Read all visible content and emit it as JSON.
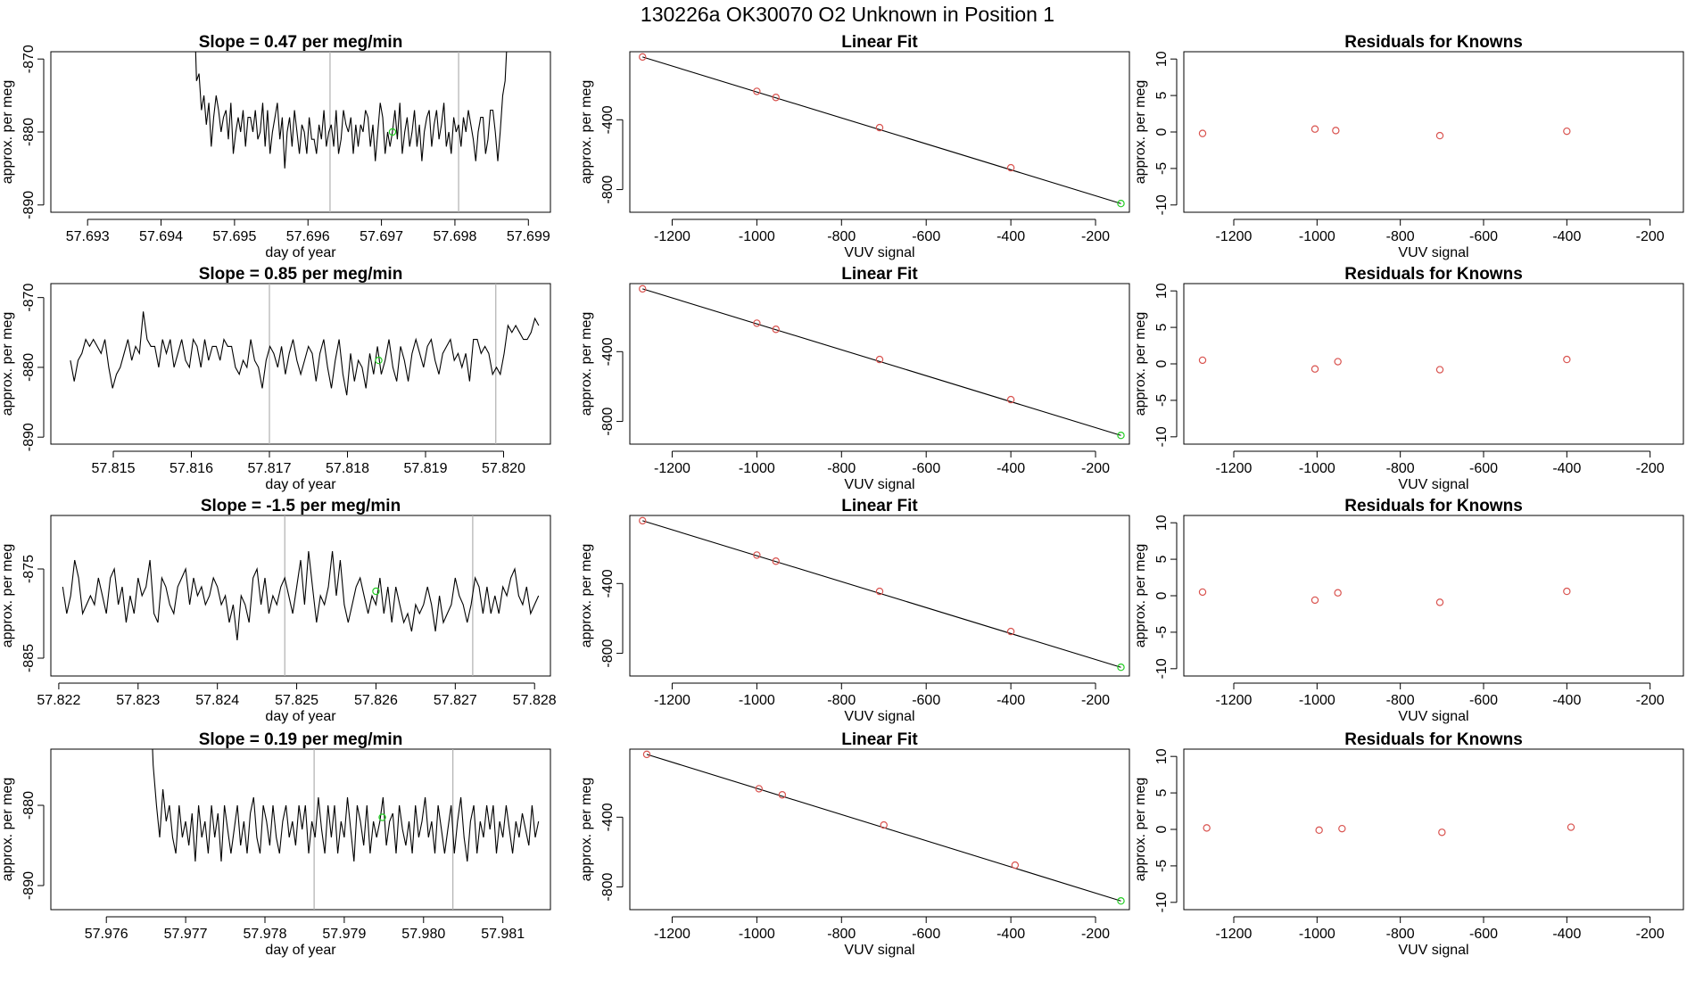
{
  "figure": {
    "title": "130226a      OK30070    O2 Unknown in Position  1"
  },
  "chart_data": [
    {
      "type": "line",
      "title": "Slope =  0.47  per meg/min",
      "xlabel": "day of year",
      "ylabel": "approx. per meg",
      "xlim": [
        57.6925,
        57.6993
      ],
      "ylim": [
        -891,
        -869
      ],
      "xticks": [
        57.693,
        57.694,
        57.695,
        57.696,
        57.697,
        57.698,
        57.699
      ],
      "xtick_labels": [
        "57.693",
        "57.694",
        "57.695",
        "57.696",
        "57.697",
        "57.698",
        "57.699"
      ],
      "yticks": [
        -870,
        -880,
        -890
      ],
      "ytick_labels": [
        "-870",
        "-880",
        "-890"
      ],
      "x_start": 57.69445,
      "x_end": 57.69875,
      "values": [
        -862,
        -873,
        -872,
        -877,
        -875,
        -879,
        -876,
        -882,
        -878,
        -875,
        -877,
        -880,
        -878,
        -877,
        -881,
        -876,
        -883,
        -880,
        -878,
        -880,
        -877,
        -882,
        -878,
        -878,
        -880,
        -877,
        -881,
        -880,
        -876,
        -882,
        -877,
        -883,
        -880,
        -878,
        -876,
        -881,
        -878,
        -885,
        -880,
        -878,
        -882,
        -877,
        -880,
        -883,
        -879,
        -880,
        -883,
        -878,
        -881,
        -881,
        -883,
        -879,
        -881,
        -877,
        -882,
        -880,
        -879,
        -882,
        -877,
        -883,
        -881,
        -877,
        -879,
        -880,
        -878,
        -883,
        -879,
        -882,
        -879,
        -880,
        -877,
        -878,
        -882,
        -879,
        -884,
        -880,
        -876,
        -878,
        -883,
        -880,
        -882,
        -880,
        -877,
        -881,
        -876,
        -883,
        -880,
        -878,
        -882,
        -880,
        -877,
        -882,
        -879,
        -884,
        -880,
        -878,
        -877,
        -882,
        -879,
        -877,
        -881,
        -879,
        -876,
        -882,
        -880,
        -883,
        -878,
        -880,
        -879,
        -882,
        -878,
        -880,
        -877,
        -879,
        -881,
        -884,
        -880,
        -878,
        -878,
        -883,
        -881,
        -877,
        -877,
        -880,
        -884,
        -880,
        -875,
        -873,
        -866,
        -858
      ],
      "vlines": [
        57.6963,
        57.69805
      ],
      "unknown_point": {
        "x": 57.69715,
        "y": -880
      }
    },
    {
      "type": "scatter",
      "title": "Linear Fit",
      "xlabel": "VUV signal",
      "ylabel": "approx. per meg",
      "xlim": [
        -1300,
        -120
      ],
      "ylim": [
        -930,
        -10
      ],
      "xticks": [
        -1200,
        -1000,
        -800,
        -600,
        -400,
        -200
      ],
      "xtick_labels": [
        "-1200",
        "-1000",
        "-800",
        "-600",
        "-400",
        "-200"
      ],
      "yticks": [
        -400,
        -800
      ],
      "ytick_labels": [
        "-400",
        "-800"
      ],
      "fit_line": [
        [
          -1270,
          -40
        ],
        [
          -140,
          -880
        ]
      ],
      "knowns": [
        [
          -1270,
          -40
        ],
        [
          -1000,
          -237
        ],
        [
          -955,
          -272
        ],
        [
          -710,
          -445
        ],
        [
          -400,
          -675
        ]
      ],
      "unknown": [
        -140,
        -880
      ]
    },
    {
      "type": "scatter",
      "title": "Residuals for Knowns",
      "xlabel": "VUV signal",
      "ylabel": "approx. per meg",
      "xlim": [
        -1320,
        -120
      ],
      "ylim": [
        -11,
        11
      ],
      "xticks": [
        -1200,
        -1000,
        -800,
        -600,
        -400,
        -200
      ],
      "xtick_labels": [
        "-1200",
        "-1000",
        "-800",
        "-600",
        "-400",
        "-200"
      ],
      "yticks": [
        10,
        5,
        0,
        -5,
        -10
      ],
      "ytick_labels": [
        "10",
        "5",
        "0",
        "-5",
        "-10"
      ],
      "residuals": [
        [
          -1275,
          -0.2
        ],
        [
          -1005,
          0.4
        ],
        [
          -955,
          0.2
        ],
        [
          -705,
          -0.5
        ],
        [
          -400,
          0.1
        ]
      ]
    },
    {
      "type": "line",
      "title": "Slope =  0.85  per meg/min",
      "xlabel": "day of year",
      "ylabel": "approx. per meg",
      "xlim": [
        57.8142,
        57.8206
      ],
      "ylim": [
        -891,
        -868
      ],
      "xticks": [
        57.815,
        57.816,
        57.817,
        57.818,
        57.819,
        57.82
      ],
      "xtick_labels": [
        "57.815",
        "57.816",
        "57.817",
        "57.818",
        "57.819",
        "57.820"
      ],
      "yticks": [
        -870,
        -880,
        -890
      ],
      "ytick_labels": [
        "-870",
        "-880",
        "-890"
      ],
      "x_start": 57.81445,
      "x_end": 57.82045,
      "values": [
        -879,
        -882,
        -879,
        -878,
        -876,
        -877,
        -876,
        -877,
        -878,
        -876,
        -880,
        -883,
        -881,
        -880,
        -878,
        -876,
        -879,
        -877,
        -878,
        -872,
        -876,
        -877,
        -877,
        -880,
        -876,
        -878,
        -876,
        -880,
        -878,
        -876,
        -879,
        -880,
        -876,
        -877,
        -880,
        -876,
        -879,
        -877,
        -877,
        -879,
        -876,
        -877,
        -877,
        -880,
        -881,
        -879,
        -880,
        -876,
        -879,
        -880,
        -883,
        -879,
        -877,
        -878,
        -880,
        -877,
        -881,
        -878,
        -876,
        -879,
        -881,
        -879,
        -877,
        -878,
        -882,
        -878,
        -876,
        -880,
        -883,
        -879,
        -876,
        -881,
        -884,
        -878,
        -882,
        -879,
        -880,
        -883,
        -878,
        -881,
        -877,
        -881,
        -879,
        -876,
        -880,
        -882,
        -877,
        -879,
        -882,
        -878,
        -876,
        -878,
        -880,
        -877,
        -876,
        -879,
        -881,
        -878,
        -877,
        -876,
        -879,
        -878,
        -880,
        -878,
        -882,
        -876,
        -876,
        -878,
        -877,
        -878,
        -881,
        -880,
        -881,
        -878,
        -874,
        -875,
        -874,
        -875,
        -876,
        -876,
        -875,
        -873,
        -874
      ],
      "vlines": [
        57.817,
        57.8199
      ],
      "unknown_point": {
        "x": 57.8184,
        "y": -879
      }
    },
    {
      "type": "scatter",
      "title": "Linear Fit",
      "xlabel": "VUV signal",
      "ylabel": "approx. per meg",
      "xlim": [
        -1300,
        -120
      ],
      "ylim": [
        -930,
        -10
      ],
      "xticks": [
        -1200,
        -1000,
        -800,
        -600,
        -400,
        -200
      ],
      "xtick_labels": [
        "-1200",
        "-1000",
        "-800",
        "-600",
        "-400",
        "-200"
      ],
      "yticks": [
        -400,
        -800
      ],
      "ytick_labels": [
        "-400",
        "-800"
      ],
      "fit_line": [
        [
          -1270,
          -40
        ],
        [
          -140,
          -880
        ]
      ],
      "knowns": [
        [
          -1270,
          -40
        ],
        [
          -1000,
          -237
        ],
        [
          -955,
          -272
        ],
        [
          -710,
          -445
        ],
        [
          -400,
          -675
        ]
      ],
      "unknown": [
        -140,
        -880
      ]
    },
    {
      "type": "scatter",
      "title": "Residuals for Knowns",
      "xlabel": "VUV signal",
      "ylabel": "approx. per meg",
      "xlim": [
        -1320,
        -120
      ],
      "ylim": [
        -11,
        11
      ],
      "xticks": [
        -1200,
        -1000,
        -800,
        -600,
        -400,
        -200
      ],
      "xtick_labels": [
        "-1200",
        "-1000",
        "-800",
        "-600",
        "-400",
        "-200"
      ],
      "yticks": [
        10,
        5,
        0,
        -5,
        -10
      ],
      "ytick_labels": [
        "10",
        "5",
        "0",
        "-5",
        "-10"
      ],
      "residuals": [
        [
          -1275,
          0.5
        ],
        [
          -1005,
          -0.7
        ],
        [
          -950,
          0.3
        ],
        [
          -705,
          -0.8
        ],
        [
          -400,
          0.6
        ]
      ]
    },
    {
      "type": "line",
      "title": "Slope =  -1.5  per meg/min",
      "xlabel": "day of year",
      "ylabel": "approx. per meg",
      "xlim": [
        57.8219,
        57.8282
      ],
      "ylim": [
        -887,
        -869
      ],
      "xticks": [
        57.822,
        57.823,
        57.824,
        57.825,
        57.826,
        57.827,
        57.828
      ],
      "xtick_labels": [
        "57.822",
        "57.823",
        "57.824",
        "57.825",
        "57.826",
        "57.827",
        "57.828"
      ],
      "yticks": [
        -875,
        -885
      ],
      "ytick_labels": [
        "-875",
        "-885"
      ],
      "x_start": 57.82205,
      "x_end": 57.82805,
      "values": [
        -877,
        -880,
        -878,
        -874,
        -876,
        -880,
        -879,
        -878,
        -879,
        -876,
        -878,
        -880,
        -876,
        -875,
        -879,
        -877,
        -881,
        -878,
        -880,
        -876,
        -878,
        -877,
        -874,
        -880,
        -881,
        -876,
        -877,
        -879,
        -880,
        -877,
        -876,
        -875,
        -879,
        -876,
        -878,
        -877,
        -879,
        -878,
        -876,
        -877,
        -879,
        -878,
        -881,
        -879,
        -883,
        -878,
        -879,
        -881,
        -876,
        -875,
        -879,
        -876,
        -880,
        -878,
        -879,
        -877,
        -876,
        -878,
        -880,
        -877,
        -874,
        -879,
        -873,
        -877,
        -881,
        -878,
        -879,
        -877,
        -873,
        -878,
        -874,
        -879,
        -881,
        -879,
        -877,
        -876,
        -878,
        -880,
        -878,
        -879,
        -876,
        -880,
        -877,
        -881,
        -877,
        -879,
        -881,
        -880,
        -882,
        -879,
        -880,
        -879,
        -877,
        -879,
        -882,
        -878,
        -881,
        -880,
        -879,
        -876,
        -878,
        -879,
        -881,
        -879,
        -876,
        -877,
        -880,
        -877,
        -880,
        -878,
        -880,
        -877,
        -878,
        -876,
        -875,
        -878,
        -879,
        -877,
        -880,
        -879,
        -878
      ],
      "vlines": [
        57.82485,
        57.82722
      ],
      "unknown_point": {
        "x": 57.826,
        "y": -877.5
      }
    },
    {
      "type": "scatter",
      "title": "Linear Fit",
      "xlabel": "VUV signal",
      "ylabel": "approx. per meg",
      "xlim": [
        -1300,
        -120
      ],
      "ylim": [
        -930,
        -10
      ],
      "xticks": [
        -1200,
        -1000,
        -800,
        -600,
        -400,
        -200
      ],
      "xtick_labels": [
        "-1200",
        "-1000",
        "-800",
        "-600",
        "-400",
        "-200"
      ],
      "yticks": [
        -400,
        -800
      ],
      "ytick_labels": [
        "-400",
        "-800"
      ],
      "fit_line": [
        [
          -1270,
          -40
        ],
        [
          -140,
          -880
        ]
      ],
      "knowns": [
        [
          -1270,
          -40
        ],
        [
          -1000,
          -237
        ],
        [
          -955,
          -272
        ],
        [
          -710,
          -445
        ],
        [
          -400,
          -675
        ]
      ],
      "unknown": [
        -140,
        -880
      ]
    },
    {
      "type": "scatter",
      "title": "Residuals for Knowns",
      "xlabel": "VUV signal",
      "ylabel": "approx. per meg",
      "xlim": [
        -1320,
        -120
      ],
      "ylim": [
        -11,
        11
      ],
      "xticks": [
        -1200,
        -1000,
        -800,
        -600,
        -400,
        -200
      ],
      "xtick_labels": [
        "-1200",
        "-1000",
        "-800",
        "-600",
        "-400",
        "-200"
      ],
      "yticks": [
        10,
        5,
        0,
        -5,
        -10
      ],
      "ytick_labels": [
        "10",
        "5",
        "0",
        "-5",
        "-10"
      ],
      "residuals": [
        [
          -1275,
          0.5
        ],
        [
          -1005,
          -0.6
        ],
        [
          -950,
          0.4
        ],
        [
          -705,
          -0.9
        ],
        [
          -400,
          0.6
        ]
      ]
    },
    {
      "type": "line",
      "title": "Slope =  0.19  per meg/min",
      "xlabel": "day of year",
      "ylabel": "approx. per meg",
      "xlim": [
        57.9753,
        57.9816
      ],
      "ylim": [
        -893,
        -873
      ],
      "xticks": [
        57.976,
        57.977,
        57.978,
        57.979,
        57.98,
        57.981
      ],
      "xtick_labels": [
        "57.976",
        "57.977",
        "57.978",
        "57.979",
        "57.980",
        "57.981"
      ],
      "yticks": [
        -880,
        -890
      ],
      "ytick_labels": [
        "-880",
        "-890"
      ],
      "x_start": 57.97655,
      "x_end": 57.98145,
      "values": [
        -865,
        -875,
        -880,
        -884,
        -878,
        -882,
        -880,
        -884,
        -886,
        -880,
        -884,
        -882,
        -885,
        -881,
        -887,
        -880,
        -884,
        -882,
        -886,
        -880,
        -884,
        -881,
        -887,
        -880,
        -883,
        -886,
        -883,
        -880,
        -885,
        -882,
        -886,
        -881,
        -879,
        -884,
        -886,
        -880,
        -882,
        -885,
        -880,
        -884,
        -886,
        -882,
        -880,
        -884,
        -882,
        -885,
        -880,
        -883,
        -880,
        -886,
        -882,
        -884,
        -879,
        -883,
        -886,
        -880,
        -884,
        -880,
        -886,
        -882,
        -884,
        -879,
        -883,
        -887,
        -880,
        -882,
        -885,
        -880,
        -886,
        -882,
        -884,
        -882,
        -879,
        -885,
        -882,
        -881,
        -886,
        -880,
        -883,
        -885,
        -882,
        -886,
        -880,
        -884,
        -882,
        -879,
        -884,
        -882,
        -886,
        -880,
        -883,
        -886,
        -883,
        -880,
        -886,
        -882,
        -879,
        -884,
        -887,
        -882,
        -880,
        -886,
        -882,
        -884,
        -880,
        -883,
        -880,
        -886,
        -882,
        -884,
        -880,
        -883,
        -886,
        -882,
        -884,
        -881,
        -883,
        -885,
        -880,
        -884,
        -882
      ],
      "vlines": [
        57.97862,
        57.98037
      ],
      "unknown_point": {
        "x": 57.97948,
        "y": -881.5
      }
    },
    {
      "type": "scatter",
      "title": "Linear Fit",
      "xlabel": "VUV signal",
      "ylabel": "approx. per meg",
      "xlim": [
        -1300,
        -120
      ],
      "ylim": [
        -930,
        -10
      ],
      "xticks": [
        -1200,
        -1000,
        -800,
        -600,
        -400,
        -200
      ],
      "xtick_labels": [
        "-1200",
        "-1000",
        "-800",
        "-600",
        "-400",
        "-200"
      ],
      "yticks": [
        -400,
        -800
      ],
      "ytick_labels": [
        "-400",
        "-800"
      ],
      "fit_line": [
        [
          -1260,
          -40
        ],
        [
          -140,
          -880
        ]
      ],
      "knowns": [
        [
          -1260,
          -40
        ],
        [
          -995,
          -237
        ],
        [
          -940,
          -272
        ],
        [
          -700,
          -445
        ],
        [
          -390,
          -675
        ]
      ],
      "unknown": [
        -140,
        -880
      ]
    },
    {
      "type": "scatter",
      "title": "Residuals for Knowns",
      "xlabel": "VUV signal",
      "ylabel": "approx. per meg",
      "xlim": [
        -1320,
        -120
      ],
      "ylim": [
        -11,
        11
      ],
      "xticks": [
        -1200,
        -1000,
        -800,
        -600,
        -400,
        -200
      ],
      "xtick_labels": [
        "-1200",
        "-1000",
        "-800",
        "-600",
        "-400",
        "-200"
      ],
      "yticks": [
        10,
        5,
        0,
        -5,
        -10
      ],
      "ytick_labels": [
        "10",
        "5",
        "0",
        "-5",
        "-10"
      ],
      "residuals": [
        [
          -1265,
          0.2
        ],
        [
          -995,
          -0.1
        ],
        [
          -940,
          0.1
        ],
        [
          -700,
          -0.4
        ],
        [
          -390,
          0.3
        ]
      ]
    }
  ],
  "colors": {
    "known_marker": "#d9534f",
    "unknown_marker": "#22cc22",
    "vertical_marker": "#b0b0b0"
  }
}
